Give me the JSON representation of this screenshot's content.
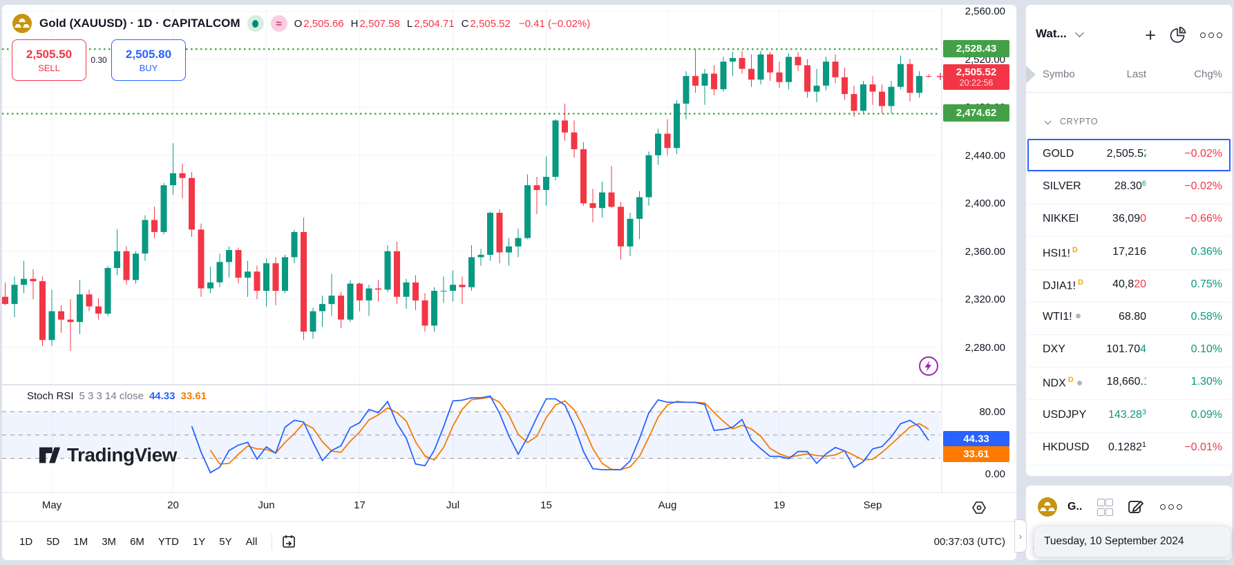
{
  "header": {
    "title": "Gold (XAUUSD) · 1D · CAPITALCOM",
    "ohlc": [
      {
        "k": "O",
        "v": "2,505.66"
      },
      {
        "k": "H",
        "v": "2,507.58"
      },
      {
        "k": "L",
        "v": "2,504.71"
      },
      {
        "k": "C",
        "v": "2,505.52"
      },
      {
        "k": "",
        "v": "−0.41 (−0.02%)"
      }
    ],
    "sell_price": "2,505.50",
    "sell_label": "SELL",
    "spread": "0.30",
    "buy_price": "2,505.80",
    "buy_label": "BUY"
  },
  "price_scale": {
    "high_badge": "2,528.43",
    "last_price": "2,505.52",
    "last_time": "20:22:56",
    "low_badge": "2,474.62"
  },
  "indicator": {
    "title": "Stoch RSI",
    "params": "5 3 3 14 close",
    "k_value": "44.33",
    "d_value": "33.61"
  },
  "watermark": {
    "text": "TradingView"
  },
  "toolbar": {
    "ranges": [
      "1D",
      "5D",
      "1M",
      "3M",
      "6M",
      "YTD",
      "1Y",
      "5Y",
      "All"
    ],
    "clock": "00:37:03 (UTC)"
  },
  "watchlist": {
    "title": "Wat...",
    "columns": [
      "Symbo",
      "Last",
      "Chg%"
    ],
    "section": "CRYPTO",
    "rows": [
      {
        "symbol": "GOLD",
        "badge": null,
        "dot": false,
        "last": "2,505.5",
        "tick": "2",
        "tick_dir": "up",
        "clip": true,
        "sup": null,
        "sup_dir": null,
        "main_dir": null,
        "chg": "−0.02%",
        "chg_dir": "down",
        "selected": true
      },
      {
        "symbol": "SILVER",
        "badge": null,
        "dot": false,
        "last": "28.30",
        "tick": "",
        "tick_dir": null,
        "clip": false,
        "sup": "6",
        "sup_dir": "up",
        "main_dir": null,
        "chg": "−0.02%",
        "chg_dir": "down",
        "selected": false
      },
      {
        "symbol": "NIKKEI",
        "badge": null,
        "dot": false,
        "last": "36,09",
        "tick": "0",
        "tick_dir": "down",
        "clip": false,
        "sup": null,
        "sup_dir": null,
        "main_dir": null,
        "chg": "−0.66%",
        "chg_dir": "down",
        "selected": false
      },
      {
        "symbol": "HSI1!",
        "badge": "D",
        "dot": false,
        "last": "17,216",
        "tick": "",
        "tick_dir": null,
        "clip": false,
        "sup": null,
        "sup_dir": null,
        "main_dir": null,
        "chg": "0.36%",
        "chg_dir": "up",
        "selected": false
      },
      {
        "symbol": "DJIA1!",
        "badge": "D",
        "dot": false,
        "last": "40,8",
        "tick": "20",
        "tick_dir": "down",
        "clip": false,
        "sup": null,
        "sup_dir": null,
        "main_dir": null,
        "chg": "0.75%",
        "chg_dir": "up",
        "selected": false
      },
      {
        "symbol": "WTI1!",
        "badge": null,
        "dot": true,
        "last": "68.80",
        "tick": "",
        "tick_dir": null,
        "clip": false,
        "sup": null,
        "sup_dir": null,
        "main_dir": null,
        "chg": "0.58%",
        "chg_dir": "up",
        "selected": false
      },
      {
        "symbol": "DXY",
        "badge": null,
        "dot": false,
        "last": "101.70",
        "tick": "4",
        "tick_dir": "up",
        "clip": false,
        "sup": null,
        "sup_dir": null,
        "main_dir": null,
        "chg": "0.10%",
        "chg_dir": "up",
        "selected": false
      },
      {
        "symbol": "NDX",
        "badge": "D",
        "dot": true,
        "last": "18,660.",
        "tick": "1",
        "tick_dir": "up",
        "clip": true,
        "sup": null,
        "sup_dir": null,
        "main_dir": null,
        "chg": "1.30%",
        "chg_dir": "up",
        "selected": false
      },
      {
        "symbol": "USDJPY",
        "badge": null,
        "dot": false,
        "last": "143.28",
        "tick": "",
        "tick_dir": null,
        "clip": false,
        "sup": "3",
        "sup_dir": "up",
        "main_dir": "up",
        "chg": "0.09%",
        "chg_dir": "up",
        "selected": false
      },
      {
        "symbol": "HKDUSD",
        "badge": null,
        "dot": false,
        "last": "0.1282",
        "tick": "",
        "tick_dir": null,
        "clip": false,
        "sup": "1",
        "sup_dir": null,
        "main_dir": null,
        "chg": "−0.01%",
        "chg_dir": "down",
        "selected": false
      }
    ]
  },
  "widget": {
    "label": "G..",
    "partial": "C",
    "tooltip": "Tuesday, 10 September 2024"
  },
  "colors": {
    "up": "#089981",
    "down": "#f23645",
    "k_line": "#2962ff",
    "d_line": "#f57c00",
    "level_line": "#3ba33b",
    "grid": "#f0f3fa",
    "divider": "#e0e3eb",
    "dashed": "#9598a1",
    "band": "rgba(41,98,255,0.07)",
    "badge_green": "#43a047",
    "badge_red": "#f23645",
    "badge_blue": "#2962ff",
    "badge_orange": "#ff7a00",
    "selection": "#2962ff"
  },
  "chart_data": {
    "type": "candlestick",
    "title": "Gold (XAUUSD) 1D CAPITALCOM",
    "price_lines": {
      "high": 2528.43,
      "low": 2474.62,
      "last": 2505.52
    },
    "price_ticks": [
      {
        "value": 2560,
        "label": "2,560.00"
      },
      {
        "value": 2520,
        "label": "2,520.00"
      },
      {
        "value": 2480,
        "label": "2,480.00"
      },
      {
        "value": 2440,
        "label": "2,440.00"
      },
      {
        "value": 2400,
        "label": "2,400.00"
      },
      {
        "value": 2360,
        "label": "2,360.00"
      },
      {
        "value": 2320,
        "label": "2,320.00"
      },
      {
        "value": 2280,
        "label": "2,280.00"
      }
    ],
    "x_ticks": [
      {
        "label": "May",
        "index": 5
      },
      {
        "label": "20",
        "index": 18
      },
      {
        "label": "Jun",
        "index": 28
      },
      {
        "label": "17",
        "index": 38
      },
      {
        "label": "Jul",
        "index": 48
      },
      {
        "label": "15",
        "index": 58
      },
      {
        "label": "Aug",
        "index": 71
      },
      {
        "label": "19",
        "index": 83
      },
      {
        "label": "Sep",
        "index": 93
      }
    ],
    "candles": [
      [
        2322,
        2334,
        2315,
        2316
      ],
      [
        2316,
        2339,
        2305,
        2332
      ],
      [
        2332,
        2352,
        2325,
        2337
      ],
      [
        2337,
        2345,
        2320,
        2335
      ],
      [
        2335,
        2339,
        2281,
        2286
      ],
      [
        2286,
        2328,
        2281,
        2310
      ],
      [
        2310,
        2315,
        2292,
        2303
      ],
      [
        2303,
        2320,
        2277,
        2301
      ],
      [
        2301,
        2336,
        2291,
        2324
      ],
      [
        2324,
        2328,
        2310,
        2314
      ],
      [
        2314,
        2321,
        2303,
        2308
      ],
      [
        2308,
        2348,
        2306,
        2346
      ],
      [
        2346,
        2378,
        2340,
        2360
      ],
      [
        2360,
        2364,
        2332,
        2336
      ],
      [
        2336,
        2360,
        2333,
        2358
      ],
      [
        2358,
        2390,
        2352,
        2386
      ],
      [
        2386,
        2397,
        2371,
        2376
      ],
      [
        2376,
        2417,
        2374,
        2415
      ],
      [
        2415,
        2450,
        2407,
        2425
      ],
      [
        2425,
        2433,
        2404,
        2421
      ],
      [
        2421,
        2426,
        2372,
        2378
      ],
      [
        2378,
        2383,
        2322,
        2329
      ],
      [
        2329,
        2347,
        2325,
        2334
      ],
      [
        2334,
        2358,
        2330,
        2351
      ],
      [
        2351,
        2364,
        2338,
        2361
      ],
      [
        2361,
        2363,
        2333,
        2338
      ],
      [
        2338,
        2352,
        2322,
        2343
      ],
      [
        2343,
        2348,
        2320,
        2327
      ],
      [
        2327,
        2354,
        2314,
        2350
      ],
      [
        2350,
        2355,
        2315,
        2327
      ],
      [
        2327,
        2357,
        2325,
        2355
      ],
      [
        2355,
        2378,
        2350,
        2376
      ],
      [
        2376,
        2388,
        2286,
        2293
      ],
      [
        2293,
        2313,
        2287,
        2310
      ],
      [
        2310,
        2323,
        2297,
        2316
      ],
      [
        2316,
        2341,
        2306,
        2323
      ],
      [
        2323,
        2326,
        2296,
        2303
      ],
      [
        2303,
        2336,
        2301,
        2333
      ],
      [
        2333,
        2334,
        2310,
        2319
      ],
      [
        2319,
        2332,
        2306,
        2329
      ],
      [
        2329,
        2336,
        2318,
        2328
      ],
      [
        2328,
        2365,
        2326,
        2360
      ],
      [
        2360,
        2368,
        2316,
        2322
      ],
      [
        2322,
        2337,
        2312,
        2334
      ],
      [
        2334,
        2340,
        2311,
        2319
      ],
      [
        2319,
        2325,
        2293,
        2298
      ],
      [
        2298,
        2330,
        2293,
        2327
      ],
      [
        2327,
        2339,
        2317,
        2327
      ],
      [
        2327,
        2344,
        2318,
        2332
      ],
      [
        2332,
        2339,
        2316,
        2330
      ],
      [
        2330,
        2365,
        2327,
        2355
      ],
      [
        2355,
        2362,
        2348,
        2357
      ],
      [
        2357,
        2393,
        2352,
        2392
      ],
      [
        2392,
        2395,
        2350,
        2359
      ],
      [
        2359,
        2371,
        2348,
        2364
      ],
      [
        2364,
        2379,
        2355,
        2371
      ],
      [
        2371,
        2424,
        2370,
        2415
      ],
      [
        2415,
        2422,
        2391,
        2411
      ],
      [
        2411,
        2439,
        2398,
        2422
      ],
      [
        2422,
        2470,
        2419,
        2469
      ],
      [
        2469,
        2483,
        2452,
        2459
      ],
      [
        2459,
        2469,
        2438,
        2445
      ],
      [
        2445,
        2451,
        2398,
        2400
      ],
      [
        2400,
        2412,
        2384,
        2396
      ],
      [
        2396,
        2418,
        2388,
        2409
      ],
      [
        2409,
        2431,
        2396,
        2397
      ],
      [
        2397,
        2401,
        2353,
        2364
      ],
      [
        2364,
        2392,
        2356,
        2387
      ],
      [
        2387,
        2410,
        2370,
        2405
      ],
      [
        2405,
        2443,
        2398,
        2440
      ],
      [
        2440,
        2462,
        2432,
        2458
      ],
      [
        2458,
        2470,
        2440,
        2446
      ],
      [
        2446,
        2486,
        2441,
        2483
      ],
      [
        2483,
        2510,
        2470,
        2506
      ],
      [
        2506,
        2528.4,
        2492,
        2498
      ],
      [
        2498,
        2512,
        2482,
        2508
      ],
      [
        2508,
        2515,
        2490,
        2495
      ],
      [
        2495,
        2522,
        2493,
        2518
      ],
      [
        2518,
        2526,
        2506,
        2521
      ],
      [
        2521,
        2527,
        2508,
        2512
      ],
      [
        2512,
        2524,
        2497,
        2503
      ],
      [
        2503,
        2527,
        2499,
        2524
      ],
      [
        2524,
        2526,
        2502,
        2509
      ],
      [
        2509,
        2518,
        2496,
        2501
      ],
      [
        2501,
        2525,
        2495,
        2522
      ],
      [
        2522,
        2526,
        2510,
        2515
      ],
      [
        2515,
        2520,
        2488,
        2493
      ],
      [
        2493,
        2512,
        2484,
        2498
      ],
      [
        2498,
        2522,
        2494,
        2518
      ],
      [
        2518,
        2524,
        2500,
        2505
      ],
      [
        2505,
        2513,
        2486,
        2491
      ],
      [
        2491,
        2498,
        2472,
        2477
      ],
      [
        2477,
        2502,
        2475,
        2499
      ],
      [
        2499,
        2506,
        2482,
        2493
      ],
      [
        2493,
        2499,
        2475,
        2481
      ],
      [
        2481,
        2502,
        2474.6,
        2497
      ],
      [
        2497,
        2523,
        2495,
        2516
      ],
      [
        2516,
        2520,
        2485,
        2492
      ],
      [
        2492,
        2510,
        2488,
        2506
      ],
      [
        2506,
        2507.6,
        2504.7,
        2505.5
      ]
    ],
    "oscillator": {
      "type": "stoch_rsi",
      "params": "5 3 3 14 close",
      "k": 44.33,
      "d": 33.61,
      "upper": 80,
      "middle": 50,
      "lower": 20,
      "ticks": [
        {
          "value": 80,
          "label": "80.00"
        },
        {
          "value": 0,
          "label": "0.00"
        }
      ]
    }
  }
}
